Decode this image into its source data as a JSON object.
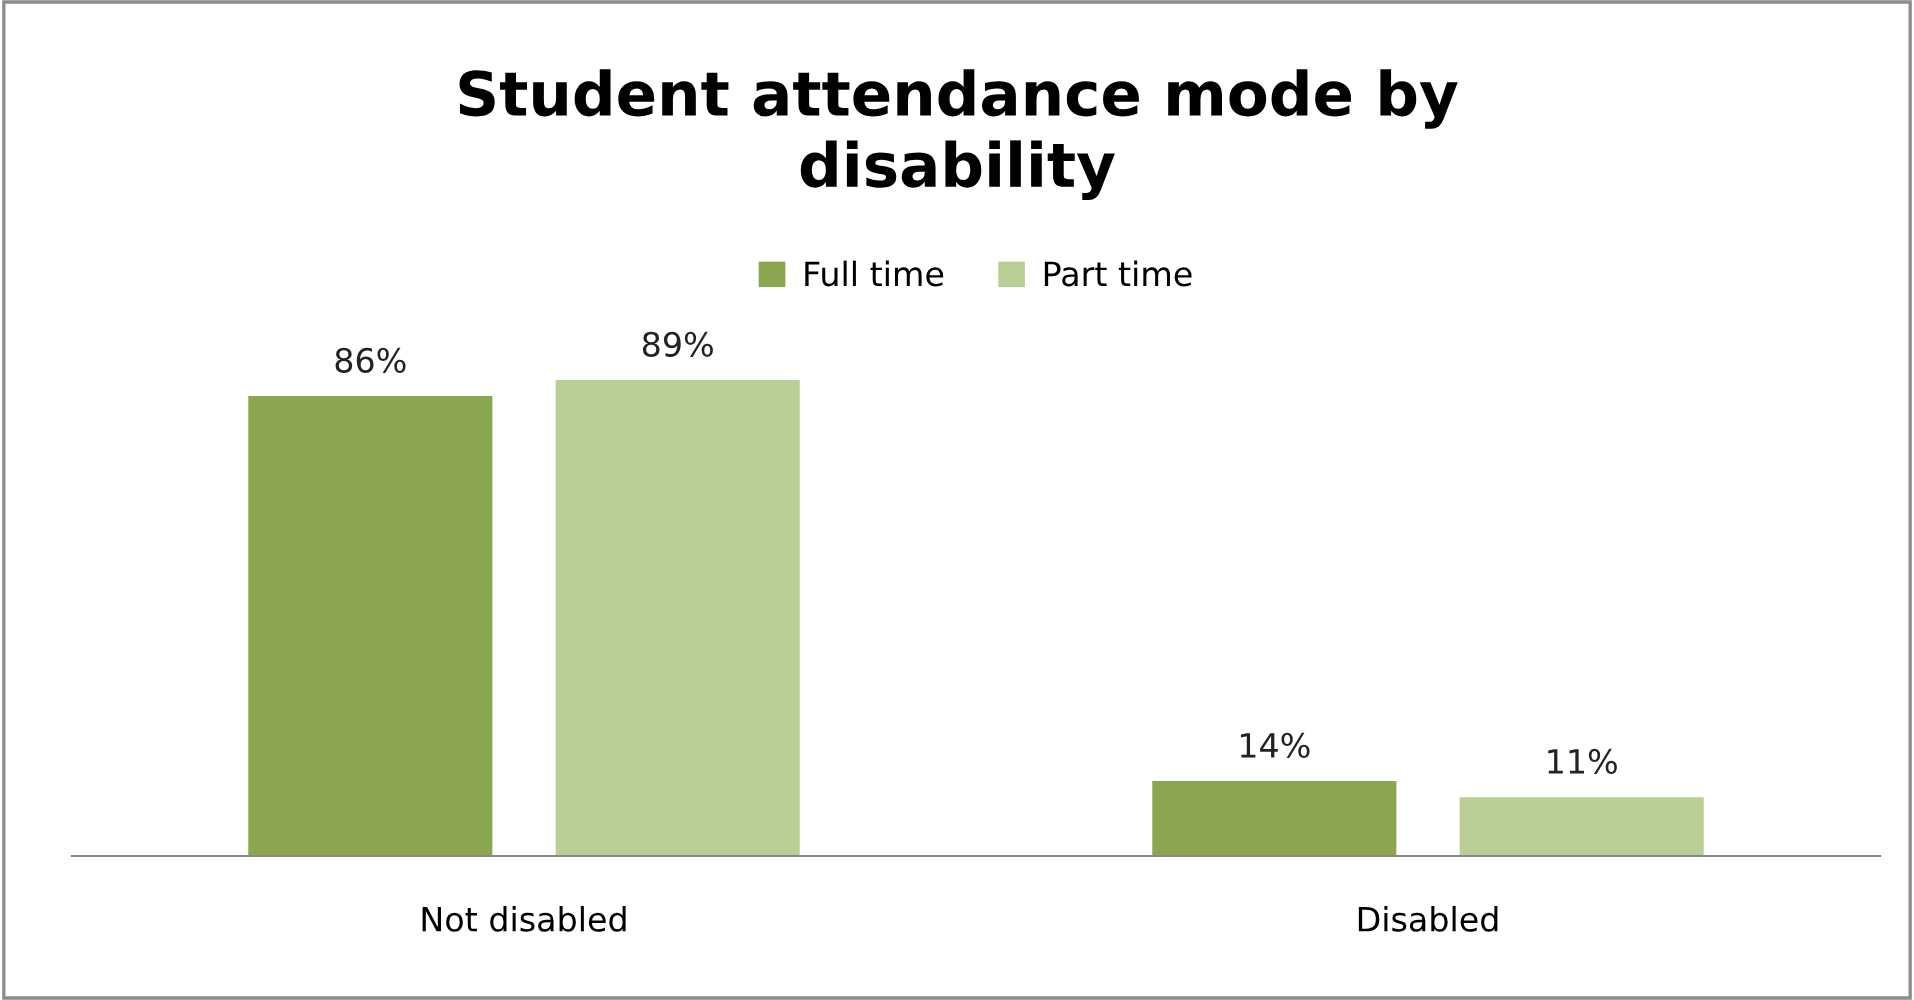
{
  "chart_data": {
    "type": "bar",
    "title": "Student attendance mode by\ndisability",
    "categories": [
      "Not disabled",
      "Disabled"
    ],
    "series": [
      {
        "name": "Full time",
        "color": "#8aa64f",
        "values": [
          86,
          14
        ],
        "value_labels": [
          "86%",
          "14%"
        ]
      },
      {
        "name": "Part time",
        "color": "#b9cf96",
        "values": [
          89,
          11
        ],
        "value_labels": [
          "89%",
          "11%"
        ]
      }
    ],
    "legend": "top",
    "grid": false
  }
}
